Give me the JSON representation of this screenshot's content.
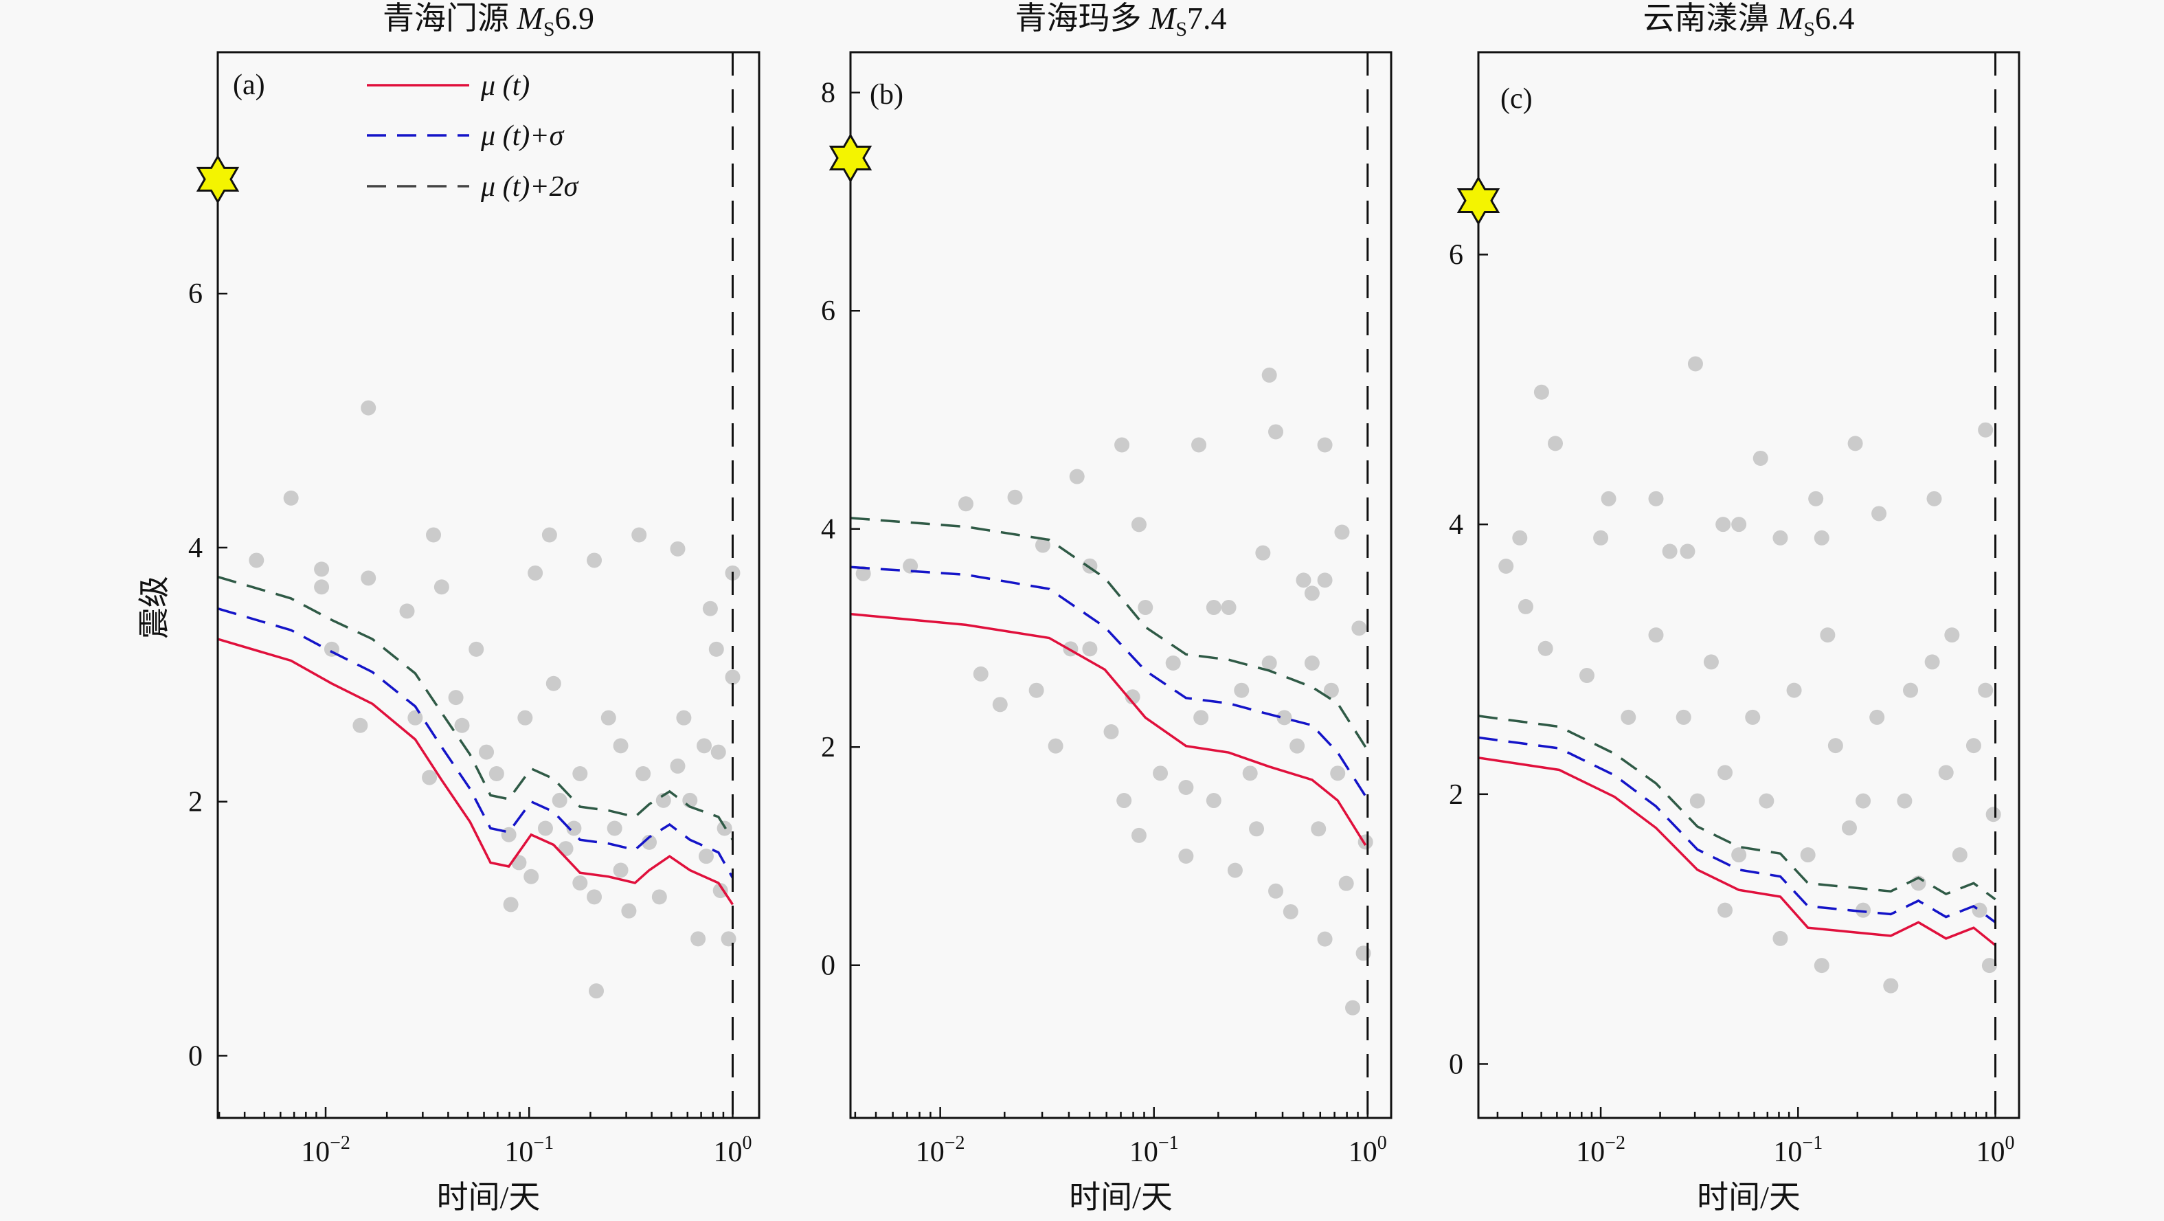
{
  "chart_data": [
    {
      "type": "scatter",
      "panel_tag": "(a)",
      "title": {
        "name": "青海门源 ",
        "m": "M",
        "sub": "S",
        "mag": "6.9"
      },
      "xlabel": "时间/天",
      "ylabel": "震级",
      "x_scale": "log10",
      "xlim_log10": [
        -2.53,
        0.13
      ],
      "ylim": [
        -0.49,
        7.9
      ],
      "yticks": [
        0,
        2,
        4,
        6
      ],
      "xticks": [
        {
          "base": "10",
          "exp": "−2",
          "log10": -2
        },
        {
          "base": "10",
          "exp": "−1",
          "log10": -1
        },
        {
          "base": "10",
          "exp": "0",
          "log10": 0
        }
      ],
      "mainshock": {
        "log10_t": -2.53,
        "magnitude": 6.9
      },
      "cutoff_log10_t": 0,
      "legend": [
        {
          "label": "μ (t)",
          "series": 0
        },
        {
          "label": "μ (t)+σ",
          "series": 1
        },
        {
          "label": "μ (t)+2σ",
          "series": 2
        }
      ],
      "curve_x_log10": [
        -2.53,
        -2.17,
        -1.97,
        -1.77,
        -1.56,
        -1.43,
        -1.29,
        -1.19,
        -1.1,
        -0.99,
        -0.88,
        -0.75,
        -0.61,
        -0.48,
        -0.41,
        -0.31,
        -0.21,
        -0.07,
        0
      ],
      "series": [
        {
          "name": "μ(t)",
          "values": [
            3.28,
            3.11,
            2.93,
            2.77,
            2.49,
            2.17,
            1.84,
            1.52,
            1.49,
            1.74,
            1.66,
            1.44,
            1.41,
            1.36,
            1.46,
            1.57,
            1.46,
            1.36,
            1.19
          ]
        },
        {
          "name": "μ(t)+σ",
          "values": [
            3.52,
            3.35,
            3.18,
            3.02,
            2.75,
            2.43,
            2.1,
            1.79,
            1.76,
            2.0,
            1.92,
            1.7,
            1.67,
            1.62,
            1.72,
            1.82,
            1.7,
            1.6,
            1.4
          ]
        },
        {
          "name": "μ(t)+2σ",
          "values": [
            3.77,
            3.6,
            3.43,
            3.28,
            3.01,
            2.7,
            2.37,
            2.05,
            2.02,
            2.26,
            2.18,
            1.96,
            1.93,
            1.88,
            1.98,
            2.08,
            1.96,
            1.88,
            1.7
          ]
        }
      ],
      "points": [
        [
          -2.34,
          3.9
        ],
        [
          -2.17,
          4.39
        ],
        [
          -2.02,
          3.83
        ],
        [
          -2.02,
          3.69
        ],
        [
          -1.79,
          5.1
        ],
        [
          -1.79,
          3.76
        ],
        [
          -1.6,
          3.5
        ],
        [
          -1.47,
          4.1
        ],
        [
          -1.43,
          3.69
        ],
        [
          -1.36,
          2.82
        ],
        [
          -1.33,
          2.6
        ],
        [
          -1.56,
          2.66
        ],
        [
          -1.49,
          2.19
        ],
        [
          -1.26,
          3.2
        ],
        [
          -1.21,
          2.39
        ],
        [
          -1.16,
          2.22
        ],
        [
          -1.1,
          1.74
        ],
        [
          -1.09,
          1.19
        ],
        [
          -1.05,
          1.52
        ],
        [
          -0.97,
          3.8
        ],
        [
          -0.9,
          4.1
        ],
        [
          -0.88,
          2.93
        ],
        [
          -0.85,
          2.01
        ],
        [
          -0.82,
          1.63
        ],
        [
          -0.75,
          1.36
        ],
        [
          -0.68,
          3.9
        ],
        [
          -0.61,
          2.66
        ],
        [
          -0.67,
          0.51
        ],
        [
          -0.58,
          1.79
        ],
        [
          -0.51,
          1.14
        ],
        [
          -0.46,
          4.1
        ],
        [
          -0.44,
          2.22
        ],
        [
          -0.41,
          1.68
        ],
        [
          -0.36,
          1.25
        ],
        [
          -0.27,
          3.99
        ],
        [
          -0.24,
          2.66
        ],
        [
          -0.21,
          2.01
        ],
        [
          -0.17,
          0.92
        ],
        [
          -0.11,
          3.52
        ],
        [
          -0.08,
          3.2
        ],
        [
          -0.07,
          2.39
        ],
        [
          -0.04,
          1.79
        ],
        [
          -0.02,
          0.92
        ],
        [
          0.0,
          3.8
        ],
        [
          0.0,
          2.98
        ],
        [
          -0.06,
          1.3
        ],
        [
          -0.68,
          1.25
        ],
        [
          -0.99,
          1.41
        ],
        [
          -0.92,
          1.79
        ],
        [
          -0.78,
          1.79
        ],
        [
          -0.55,
          1.46
        ],
        [
          -0.34,
          2.01
        ],
        [
          -0.14,
          2.44
        ],
        [
          -0.13,
          1.57
        ],
        [
          -0.75,
          2.22
        ],
        [
          -0.55,
          2.44
        ],
        [
          -0.27,
          2.28
        ],
        [
          -1.02,
          2.66
        ],
        [
          -1.97,
          3.2
        ],
        [
          -1.83,
          2.6
        ]
      ]
    },
    {
      "type": "scatter",
      "panel_tag": "(b)",
      "title": {
        "name": "青海玛多 ",
        "m": "M",
        "sub": "S",
        "mag": "7.4"
      },
      "xlabel": "时间/天",
      "x_scale": "log10",
      "xlim_log10": [
        -2.42,
        0.11
      ],
      "ylim": [
        -1.4,
        8.37
      ],
      "yticks": [
        0,
        2,
        4,
        6,
        8
      ],
      "xticks": [
        {
          "base": "10",
          "exp": "−2",
          "log10": -2
        },
        {
          "base": "10",
          "exp": "−1",
          "log10": -1
        },
        {
          "base": "10",
          "exp": "0",
          "log10": 0
        }
      ],
      "mainshock": {
        "log10_t": -2.42,
        "magnitude": 7.4
      },
      "cutoff_log10_t": 0,
      "curve_x_log10": [
        -2.42,
        -1.88,
        -1.49,
        -1.23,
        -1.04,
        -0.85,
        -0.65,
        -0.46,
        -0.26,
        -0.14,
        -0.01
      ],
      "series": [
        {
          "name": "μ(t)",
          "values": [
            3.22,
            3.12,
            3.0,
            2.71,
            2.27,
            2.01,
            1.95,
            1.82,
            1.7,
            1.51,
            1.1
          ]
        },
        {
          "name": "μ(t)+σ",
          "values": [
            3.65,
            3.58,
            3.45,
            3.1,
            2.7,
            2.45,
            2.4,
            2.3,
            2.2,
            1.95,
            1.55
          ]
        },
        {
          "name": "μ(t)+2σ",
          "values": [
            4.1,
            4.02,
            3.9,
            3.55,
            3.1,
            2.85,
            2.8,
            2.7,
            2.55,
            2.4,
            2.0
          ]
        }
      ],
      "points": [
        [
          -2.36,
          3.59
        ],
        [
          -2.14,
          3.66
        ],
        [
          -1.88,
          4.23
        ],
        [
          -1.65,
          4.29
        ],
        [
          -1.52,
          3.85
        ],
        [
          -1.36,
          4.48
        ],
        [
          -1.3,
          3.66
        ],
        [
          -1.15,
          4.77
        ],
        [
          -1.07,
          4.04
        ],
        [
          -0.79,
          4.77
        ],
        [
          -0.46,
          5.41
        ],
        [
          -0.43,
          4.89
        ],
        [
          -0.2,
          4.77
        ],
        [
          -0.12,
          3.97
        ],
        [
          -1.81,
          2.67
        ],
        [
          -1.72,
          2.39
        ],
        [
          -1.55,
          2.52
        ],
        [
          -1.46,
          2.01
        ],
        [
          -1.3,
          2.9
        ],
        [
          -1.2,
          2.14
        ],
        [
          -1.14,
          1.51
        ],
        [
          -1.07,
          1.19
        ],
        [
          -0.97,
          1.76
        ],
        [
          -0.91,
          2.77
        ],
        [
          -0.85,
          1.0
        ],
        [
          -0.78,
          2.27
        ],
        [
          -0.72,
          1.51
        ],
        [
          -0.65,
          3.28
        ],
        [
          -0.62,
          0.87
        ],
        [
          -0.55,
          1.76
        ],
        [
          -0.52,
          1.25
        ],
        [
          -0.46,
          2.77
        ],
        [
          -0.43,
          0.68
        ],
        [
          -0.36,
          0.49
        ],
        [
          -0.33,
          2.01
        ],
        [
          -0.3,
          3.53
        ],
        [
          -0.23,
          1.25
        ],
        [
          -0.2,
          0.24
        ],
        [
          -0.17,
          2.52
        ],
        [
          -0.14,
          1.76
        ],
        [
          -0.1,
          0.75
        ],
        [
          -0.07,
          -0.39
        ],
        [
          -0.04,
          3.09
        ],
        [
          -0.02,
          0.11
        ],
        [
          -0.01,
          1.13
        ],
        [
          -1.04,
          3.28
        ],
        [
          -0.72,
          3.28
        ],
        [
          -0.59,
          2.52
        ],
        [
          -0.39,
          2.27
        ],
        [
          -0.26,
          2.77
        ],
        [
          -0.85,
          1.63
        ],
        [
          -1.39,
          2.9
        ],
        [
          -1.1,
          2.46
        ],
        [
          -0.26,
          3.41
        ],
        [
          -0.49,
          3.78
        ],
        [
          -0.2,
          3.53
        ]
      ]
    },
    {
      "type": "scatter",
      "panel_tag": "(c)",
      "title": {
        "name": "云南漾濞 ",
        "m": "M",
        "sub": "S",
        "mag": "6.4"
      },
      "xlabel": "时间/天",
      "x_scale": "log10",
      "xlim_log10": [
        -2.62,
        0.12
      ],
      "ylim": [
        -0.4,
        7.5
      ],
      "yticks": [
        0,
        2,
        4,
        6
      ],
      "xticks": [
        {
          "base": "10",
          "exp": "−2",
          "log10": -2
        },
        {
          "base": "10",
          "exp": "−1",
          "log10": -1
        },
        {
          "base": "10",
          "exp": "0",
          "log10": 0
        }
      ],
      "mainshock": {
        "log10_t": -2.62,
        "magnitude": 6.4
      },
      "cutoff_log10_t": 0,
      "curve_x_log10": [
        -2.62,
        -2.21,
        -1.93,
        -1.72,
        -1.51,
        -1.3,
        -1.09,
        -0.95,
        -0.74,
        -0.53,
        -0.39,
        -0.25,
        -0.11,
        0
      ],
      "series": [
        {
          "name": "μ(t)",
          "values": [
            2.27,
            2.18,
            1.98,
            1.75,
            1.44,
            1.29,
            1.24,
            1.01,
            0.98,
            0.95,
            1.05,
            0.93,
            1.01,
            0.88
          ]
        },
        {
          "name": "μ(t)+σ",
          "values": [
            2.42,
            2.34,
            2.14,
            1.91,
            1.59,
            1.44,
            1.39,
            1.17,
            1.14,
            1.11,
            1.21,
            1.09,
            1.17,
            1.05
          ]
        },
        {
          "name": "μ(t)+2σ",
          "values": [
            2.58,
            2.5,
            2.3,
            2.08,
            1.76,
            1.61,
            1.56,
            1.34,
            1.31,
            1.28,
            1.38,
            1.26,
            1.34,
            1.22
          ]
        }
      ],
      "points": [
        [
          -2.48,
          3.69
        ],
        [
          -2.41,
          3.9
        ],
        [
          -2.38,
          3.39
        ],
        [
          -2.3,
          4.98
        ],
        [
          -2.23,
          4.6
        ],
        [
          -1.96,
          4.19
        ],
        [
          -2.0,
          3.9
        ],
        [
          -1.72,
          4.19
        ],
        [
          -1.65,
          3.8
        ],
        [
          -1.52,
          5.19
        ],
        [
          -1.56,
          3.8
        ],
        [
          -1.38,
          4.0
        ],
        [
          -1.3,
          4.0
        ],
        [
          -1.19,
          4.49
        ],
        [
          -1.09,
          3.9
        ],
        [
          -0.91,
          4.19
        ],
        [
          -0.88,
          3.9
        ],
        [
          -0.71,
          4.6
        ],
        [
          -0.59,
          4.08
        ],
        [
          -0.31,
          4.19
        ],
        [
          -0.05,
          4.7
        ],
        [
          -2.28,
          3.08
        ],
        [
          -2.07,
          2.88
        ],
        [
          -1.86,
          2.57
        ],
        [
          -1.72,
          3.18
        ],
        [
          -1.58,
          2.57
        ],
        [
          -1.44,
          2.98
        ],
        [
          -1.37,
          2.16
        ],
        [
          -1.3,
          1.55
        ],
        [
          -1.23,
          2.57
        ],
        [
          -1.16,
          1.95
        ],
        [
          -1.09,
          0.93
        ],
        [
          -1.02,
          2.77
        ],
        [
          -0.95,
          1.55
        ],
        [
          -0.88,
          0.73
        ],
        [
          -0.81,
          2.36
        ],
        [
          -0.74,
          1.75
        ],
        [
          -0.67,
          1.14
        ],
        [
          -0.6,
          2.57
        ],
        [
          -0.53,
          0.58
        ],
        [
          -0.46,
          1.95
        ],
        [
          -0.39,
          1.34
        ],
        [
          -0.32,
          2.98
        ],
        [
          -0.25,
          2.16
        ],
        [
          -0.22,
          3.18
        ],
        [
          -0.18,
          1.55
        ],
        [
          -0.11,
          2.36
        ],
        [
          -0.08,
          1.14
        ],
        [
          -0.05,
          2.77
        ],
        [
          -0.03,
          0.73
        ],
        [
          -0.01,
          1.85
        ],
        [
          -1.37,
          1.14
        ],
        [
          -1.51,
          1.95
        ],
        [
          -0.67,
          1.95
        ],
        [
          -0.43,
          2.77
        ],
        [
          -0.85,
          3.18
        ]
      ]
    }
  ],
  "colors": {
    "mu": "#e0103c",
    "mu_sigma": "#1414c8",
    "mu_2sigma": "#2f5a46",
    "legend_2sigma": "#444444",
    "points": "#cbcbcb",
    "star": "#f4f400",
    "background": "#f8f8f8"
  }
}
